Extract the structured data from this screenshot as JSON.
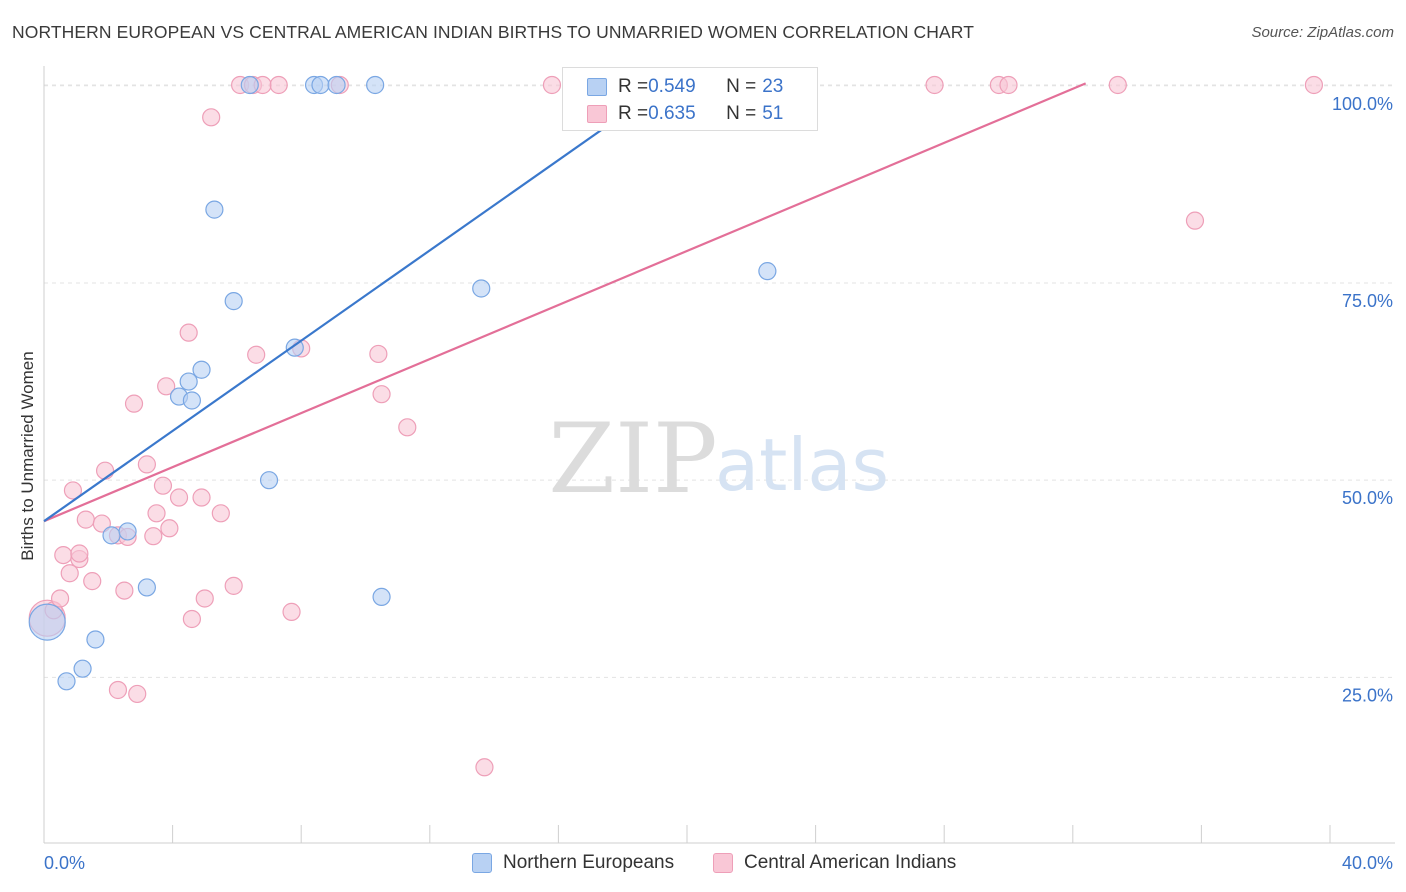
{
  "header": {
    "title": "NORTHERN EUROPEAN VS CENTRAL AMERICAN INDIAN BIRTHS TO UNMARRIED WOMEN CORRELATION CHART",
    "source": "Source: ZipAtlas.com"
  },
  "watermark": {
    "zip": "ZIP",
    "atlas": "atlas"
  },
  "colors": {
    "blue_fill": "#b8d1f3",
    "blue_stroke": "#7aa7e3",
    "blue_line": "#3a78cc",
    "pink_fill": "#f9c7d6",
    "pink_stroke": "#ee9fb8",
    "pink_line": "#e36f98",
    "tick_text": "#3b73c9",
    "grid": "#e3e3e3"
  },
  "legend": {
    "rows": [
      {
        "r_label": "R = ",
        "r_value": "0.549",
        "n_label": "N = ",
        "n_value": "23"
      },
      {
        "r_label": "R = ",
        "r_value": "0.635",
        "n_label": "N = ",
        "n_value": "51"
      }
    ]
  },
  "bottom_legend": [
    "Northern Europeans",
    "Central American Indians"
  ],
  "chart_data": {
    "type": "scatter",
    "title": "NORTHERN EUROPEAN VS CENTRAL AMERICAN INDIAN BIRTHS TO UNMARRIED WOMEN CORRELATION CHART",
    "xlabel": "",
    "ylabel": "Births to Unmarried Women",
    "xlim": [
      0,
      40
    ],
    "ylim": [
      4,
      102
    ],
    "x_tick_labels": [
      "0.0%",
      "40.0%"
    ],
    "y_ticks": [
      25,
      50,
      75,
      100
    ],
    "y_tick_labels": [
      "25.0%",
      "50.0%",
      "75.0%",
      "100.0%"
    ],
    "grid": true,
    "legend_position": "top-center",
    "series": [
      {
        "name": "Northern Europeans",
        "r": 0.549,
        "n": 23,
        "trend": {
          "x": [
            0,
            19.4
          ],
          "y": [
            44.8,
            100.3
          ]
        },
        "points": [
          {
            "x": 0.1,
            "y": 32.0,
            "big": true
          },
          {
            "x": 0.7,
            "y": 24.5
          },
          {
            "x": 1.2,
            "y": 26.1
          },
          {
            "x": 1.6,
            "y": 29.8
          },
          {
            "x": 2.1,
            "y": 43.0
          },
          {
            "x": 2.6,
            "y": 43.5
          },
          {
            "x": 3.2,
            "y": 36.4
          },
          {
            "x": 4.5,
            "y": 62.5
          },
          {
            "x": 4.2,
            "y": 60.6
          },
          {
            "x": 4.6,
            "y": 60.1
          },
          {
            "x": 4.9,
            "y": 64.0
          },
          {
            "x": 5.3,
            "y": 84.3
          },
          {
            "x": 5.9,
            "y": 72.7
          },
          {
            "x": 6.4,
            "y": 100.1
          },
          {
            "x": 7.0,
            "y": 50.0
          },
          {
            "x": 7.8,
            "y": 66.8
          },
          {
            "x": 8.4,
            "y": 100.1
          },
          {
            "x": 8.6,
            "y": 100.1
          },
          {
            "x": 9.1,
            "y": 100.1
          },
          {
            "x": 10.3,
            "y": 100.1
          },
          {
            "x": 10.5,
            "y": 35.2
          },
          {
            "x": 13.6,
            "y": 74.3
          },
          {
            "x": 22.5,
            "y": 76.5
          }
        ]
      },
      {
        "name": "Central American Indians",
        "r": 0.635,
        "n": 51,
        "trend": {
          "x": [
            0,
            32.4
          ],
          "y": [
            44.8,
            100.3
          ]
        },
        "points": [
          {
            "x": 0.1,
            "y": 32.5,
            "big": true
          },
          {
            "x": 0.3,
            "y": 33.5
          },
          {
            "x": 0.5,
            "y": 35.0
          },
          {
            "x": 0.6,
            "y": 40.5
          },
          {
            "x": 0.8,
            "y": 38.2
          },
          {
            "x": 0.9,
            "y": 48.7
          },
          {
            "x": 1.1,
            "y": 40.0
          },
          {
            "x": 1.1,
            "y": 40.7
          },
          {
            "x": 1.3,
            "y": 45.0
          },
          {
            "x": 1.5,
            "y": 37.2
          },
          {
            "x": 1.8,
            "y": 44.5
          },
          {
            "x": 1.9,
            "y": 51.2
          },
          {
            "x": 2.3,
            "y": 43.0
          },
          {
            "x": 2.3,
            "y": 23.4
          },
          {
            "x": 2.5,
            "y": 36.0
          },
          {
            "x": 2.6,
            "y": 42.8
          },
          {
            "x": 2.8,
            "y": 59.7
          },
          {
            "x": 2.9,
            "y": 22.9
          },
          {
            "x": 3.2,
            "y": 52.0
          },
          {
            "x": 3.4,
            "y": 42.9
          },
          {
            "x": 3.5,
            "y": 45.8
          },
          {
            "x": 3.7,
            "y": 49.3
          },
          {
            "x": 3.8,
            "y": 61.9
          },
          {
            "x": 3.9,
            "y": 43.9
          },
          {
            "x": 4.2,
            "y": 47.8
          },
          {
            "x": 4.5,
            "y": 68.7
          },
          {
            "x": 4.6,
            "y": 32.4
          },
          {
            "x": 4.9,
            "y": 47.8
          },
          {
            "x": 5.0,
            "y": 35.0
          },
          {
            "x": 5.2,
            "y": 96.0
          },
          {
            "x": 5.5,
            "y": 45.8
          },
          {
            "x": 5.9,
            "y": 36.6
          },
          {
            "x": 6.1,
            "y": 100.1
          },
          {
            "x": 6.5,
            "y": 100.1
          },
          {
            "x": 6.6,
            "y": 65.9
          },
          {
            "x": 6.8,
            "y": 100.1
          },
          {
            "x": 7.3,
            "y": 100.1
          },
          {
            "x": 7.7,
            "y": 33.3
          },
          {
            "x": 8.0,
            "y": 66.7
          },
          {
            "x": 9.2,
            "y": 100.1
          },
          {
            "x": 10.4,
            "y": 66.0
          },
          {
            "x": 10.5,
            "y": 60.9
          },
          {
            "x": 11.3,
            "y": 56.7
          },
          {
            "x": 13.7,
            "y": 13.6
          },
          {
            "x": 15.8,
            "y": 100.1
          },
          {
            "x": 27.7,
            "y": 100.1
          },
          {
            "x": 29.7,
            "y": 100.1
          },
          {
            "x": 30.0,
            "y": 100.1
          },
          {
            "x": 33.4,
            "y": 100.1
          },
          {
            "x": 35.8,
            "y": 82.9
          },
          {
            "x": 39.5,
            "y": 100.1
          }
        ]
      }
    ]
  }
}
